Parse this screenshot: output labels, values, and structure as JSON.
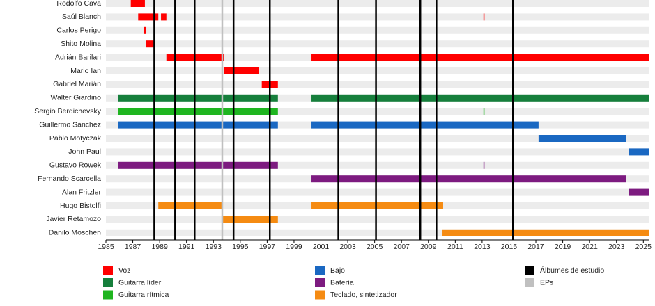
{
  "chart_data": {
    "type": "timeline",
    "categories": [
      "Rodolfo Cava",
      "Saúl Blanch",
      "Carlos Perigo",
      "Shito Molina",
      "Adrián Barilari",
      "Mario Ian",
      "Gabriel Marián",
      "Walter Giardino",
      "Sergio Berdichevsky",
      "Guillermo Sánchez",
      "Pablo Motyczak",
      "John Paul",
      "Gustavo Rowek",
      "Fernando Scarcella",
      "Alan Fritzler",
      "Hugo Bistolfi",
      "Javier Retamozo",
      "Danilo Moschen"
    ],
    "series": [
      {
        "name": "Voz",
        "color": "#ff0000",
        "bars": [
          {
            "row": "Rodolfo Cava",
            "start": 1986.85,
            "end": 1987.9
          },
          {
            "row": "Saúl Blanch",
            "start": 1987.4,
            "end": 1988.9
          },
          {
            "row": "Saúl Blanch",
            "start": 1989.1,
            "end": 1989.5
          },
          {
            "row": "Saúl Blanch",
            "start": 2013.1,
            "end": 2013.15
          },
          {
            "row": "Carlos Perigo",
            "start": 1987.8,
            "end": 1988.0
          },
          {
            "row": "Shito Molina",
            "start": 1988.0,
            "end": 1988.55
          },
          {
            "row": "Adrián Barilari",
            "start": 1989.5,
            "end": 1993.8
          },
          {
            "row": "Adrián Barilari",
            "start": 2000.3,
            "end": 2025.4
          },
          {
            "row": "Mario Ian",
            "start": 1993.8,
            "end": 1996.4
          },
          {
            "row": "Gabriel Marián",
            "start": 1996.6,
            "end": 1997.8
          }
        ]
      },
      {
        "name": "Guitarra líder",
        "color": "#167f3c",
        "bars": [
          {
            "row": "Walter Giardino",
            "start": 1985.9,
            "end": 1997.8
          },
          {
            "row": "Walter Giardino",
            "start": 2000.3,
            "end": 2025.4
          }
        ]
      },
      {
        "name": "Guitarra rítmica",
        "color": "#1fb520",
        "bars": [
          {
            "row": "Sergio Berdichevsky",
            "start": 1985.9,
            "end": 1997.8
          },
          {
            "row": "Sergio Berdichevsky",
            "start": 2013.1,
            "end": 2013.15
          }
        ]
      },
      {
        "name": "Bajo",
        "color": "#1a68c2",
        "bars": [
          {
            "row": "Guillermo Sánchez",
            "start": 1985.9,
            "end": 1997.8
          },
          {
            "row": "Guillermo Sánchez",
            "start": 2000.3,
            "end": 2017.2
          },
          {
            "row": "Pablo Motyczak",
            "start": 2017.2,
            "end": 2023.7
          },
          {
            "row": "John Paul",
            "start": 2023.9,
            "end": 2025.4
          }
        ]
      },
      {
        "name": "Batería",
        "color": "#7d1b80",
        "bars": [
          {
            "row": "Gustavo Rowek",
            "start": 1985.9,
            "end": 1997.8
          },
          {
            "row": "Gustavo Rowek",
            "start": 2013.1,
            "end": 2013.15
          },
          {
            "row": "Fernando Scarcella",
            "start": 2000.3,
            "end": 2023.7
          },
          {
            "row": "Alan Fritzler",
            "start": 2023.9,
            "end": 2025.4
          }
        ]
      },
      {
        "name": "Teclado, sintetizador",
        "color": "#f58b12",
        "bars": [
          {
            "row": "Hugo Bistolfi",
            "start": 1988.9,
            "end": 1993.7
          },
          {
            "row": "Hugo Bistolfi",
            "start": 2000.3,
            "end": 2010.1
          },
          {
            "row": "Javier Retamozo",
            "start": 1993.7,
            "end": 1997.8
          },
          {
            "row": "Danilo Moschen",
            "start": 2010.05,
            "end": 2025.4
          }
        ]
      }
    ],
    "events": [
      {
        "name": "Álbumes de estudio",
        "color": "#000000",
        "values": [
          1988.6,
          1990.15,
          1991.6,
          1994.5,
          1997.2,
          2002.3,
          2005.1,
          2008.4,
          2009.6,
          2015.3
        ]
      },
      {
        "name": "EPs",
        "color": "#c0c0c0",
        "values": [
          1993.66
        ]
      }
    ],
    "xlim": [
      1985,
      2025.4
    ],
    "xticks": [
      1985,
      1987,
      1989,
      1991,
      1993,
      1995,
      1997,
      1999,
      2001,
      2003,
      2005,
      2007,
      2009,
      2011,
      2013,
      2015,
      2017,
      2019,
      2021,
      2023,
      2025
    ]
  }
}
